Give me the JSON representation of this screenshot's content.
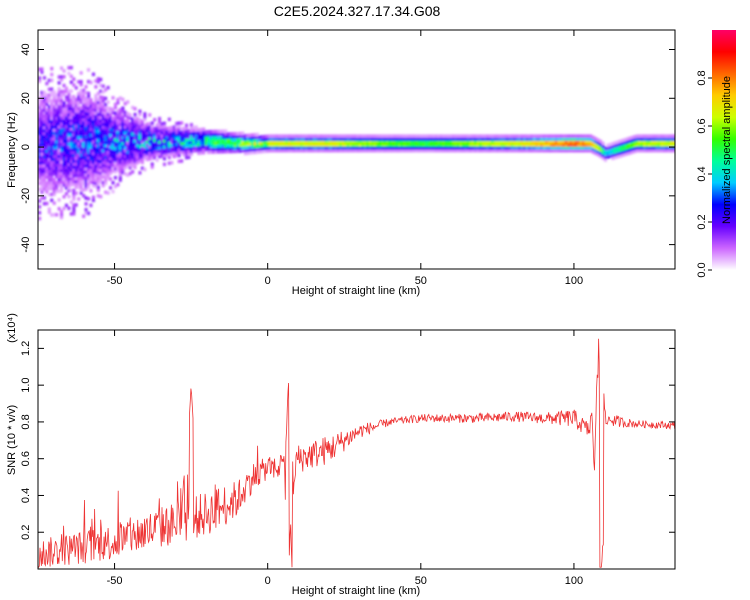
{
  "title": "C2E5.2024.327.17.34.G08",
  "chart_data": [
    {
      "type": "heatmap",
      "xlabel": "Height of straight line (km)",
      "ylabel": "Frequency (Hz)",
      "xlim": [
        -75,
        133
      ],
      "ylim": [
        -50,
        48
      ],
      "xticks": [
        -50,
        0,
        50,
        100
      ],
      "xtick_labels": [
        "-50",
        "0",
        "50",
        "100"
      ],
      "yticks": [
        -40,
        -20,
        0,
        20,
        40
      ],
      "ytick_labels": [
        "-40",
        "-20",
        "0",
        "20",
        "40"
      ],
      "colorbar": {
        "label": "Normalized spectral amplitude",
        "range": [
          0.0,
          1.0
        ],
        "ticks": [
          0.0,
          0.2,
          0.4,
          0.6,
          0.8
        ],
        "tick_labels": [
          "0.0",
          "0.2",
          "0.4",
          "0.6",
          "0.8"
        ],
        "colormap": [
          "#ffffff",
          "#cc66ff",
          "#6600ff",
          "#0000ff",
          "#00ccff",
          "#00ff99",
          "#33ff00",
          "#ccff00",
          "#ffcc00",
          "#ff6600",
          "#ff0000",
          "#ff0066"
        ]
      },
      "ridge": {
        "x": [
          -75,
          -60,
          -50,
          -40,
          -30,
          -20,
          -10,
          0,
          10,
          20,
          30,
          50,
          80,
          100,
          105,
          108,
          110,
          120,
          133
        ],
        "freq": [
          1,
          2,
          2,
          2,
          2,
          2,
          1,
          1,
          1,
          1,
          1,
          1,
          1,
          1,
          1,
          -1,
          -3,
          1,
          1
        ],
        "amplitude": [
          0.35,
          0.4,
          0.45,
          0.5,
          0.55,
          0.6,
          0.7,
          0.75,
          0.75,
          0.75,
          0.7,
          0.6,
          0.75,
          0.95,
          0.85,
          0.7,
          0.4,
          0.7,
          0.75
        ]
      },
      "spread_hz": {
        "x": [
          -75,
          -60,
          -50,
          -40,
          -30,
          -20,
          -10,
          0,
          20,
          133
        ],
        "halfwidth": [
          22,
          22,
          14,
          8,
          6,
          5,
          4,
          3,
          3,
          3
        ]
      }
    },
    {
      "type": "line",
      "xlabel": "Height of straight line (km)",
      "ylabel": "SNR (10 * v/v)",
      "y_multiplier": "(x10⁴)",
      "xlim": [
        -75,
        133
      ],
      "ylim": [
        0.0,
        1.3
      ],
      "xticks": [
        -50,
        0,
        50,
        100
      ],
      "xtick_labels": [
        "-50",
        "0",
        "50",
        "100"
      ],
      "yticks": [
        0.2,
        0.4,
        0.6,
        0.8,
        1.0,
        1.2
      ],
      "ytick_labels": [
        "0.2",
        "0.4",
        "0.6",
        "0.8",
        "1.0",
        "1.2"
      ],
      "color": "#ee3333",
      "baseline": {
        "x": [
          -75,
          -60,
          -50,
          -40,
          -30,
          -20,
          -10,
          -5,
          0,
          5,
          10,
          20,
          30,
          40,
          50,
          60,
          70,
          80,
          90,
          100,
          105,
          110,
          115,
          120,
          133
        ],
        "y": [
          0.08,
          0.12,
          0.15,
          0.2,
          0.25,
          0.3,
          0.38,
          0.5,
          0.55,
          0.55,
          0.6,
          0.65,
          0.75,
          0.8,
          0.82,
          0.82,
          0.82,
          0.83,
          0.82,
          0.82,
          0.75,
          0.82,
          0.8,
          0.79,
          0.78
        ]
      },
      "noise": {
        "x": [
          -75,
          -50,
          -30,
          -15,
          0,
          10,
          20,
          30,
          40,
          90,
          100,
          110,
          120,
          133
        ],
        "amp": [
          0.08,
          0.1,
          0.12,
          0.12,
          0.06,
          0.08,
          0.08,
          0.04,
          0.02,
          0.03,
          0.05,
          0.04,
          0.02,
          0.02
        ]
      },
      "spikes": [
        {
          "x": -25,
          "y": 1.0
        },
        {
          "x": 6.5,
          "y": 1.04
        },
        {
          "x": 7.5,
          "y": 0.04
        },
        {
          "x": 108.5,
          "y": 1.3
        },
        {
          "x": 109.0,
          "y": 0.12
        }
      ]
    }
  ]
}
